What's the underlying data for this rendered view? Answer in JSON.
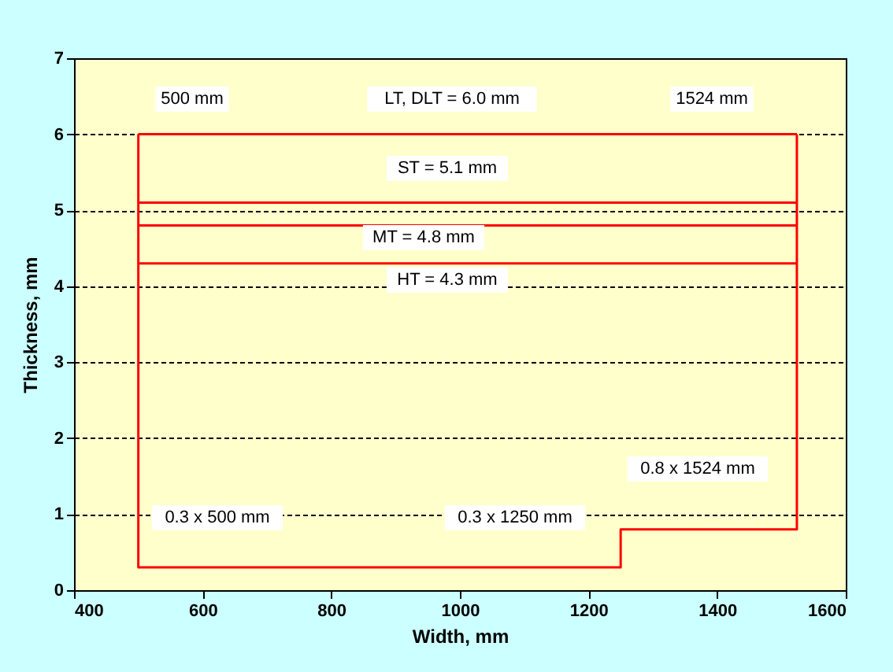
{
  "chart_data": {
    "type": "line",
    "xlabel": "Width, mm",
    "ylabel": "Thickness, mm",
    "xlim": [
      400,
      1600
    ],
    "xticks": [
      400,
      600,
      800,
      1000,
      1200,
      1400,
      1600
    ],
    "ylim": [
      0,
      7
    ],
    "yticks": [
      0,
      1,
      2,
      3,
      4,
      5,
      6,
      7
    ],
    "grid": "y",
    "marker": "none",
    "line_style": "solid",
    "series": [
      {
        "color": "#ff0000",
        "x": [
          500,
          500,
          1250,
          1250,
          1524,
          1524
        ],
        "values": [
          6.0,
          0.3,
          0.3,
          0.8,
          0.8,
          6.0
        ]
      },
      {
        "color": "#ff0000",
        "x": [
          500,
          1524
        ],
        "values": [
          6.0,
          6.0
        ]
      },
      {
        "color": "#ff0000",
        "x": [
          500,
          1524
        ],
        "values": [
          5.1,
          5.1
        ]
      },
      {
        "color": "#ff0000",
        "x": [
          500,
          1524
        ],
        "values": [
          4.8,
          4.8
        ]
      },
      {
        "color": "#ff0000",
        "x": [
          500,
          1524
        ],
        "values": [
          4.3,
          4.3
        ]
      }
    ],
    "annotations": [
      "500 mm",
      "LT, DLT = 6.0 mm",
      "1524 mm",
      "ST = 5.1 mm",
      "MT = 4.8 mm",
      "HT = 4.3 mm",
      "0.8 x 1524 mm",
      "0.3 x 500 mm",
      "0.3 x 1250 mm"
    ]
  }
}
